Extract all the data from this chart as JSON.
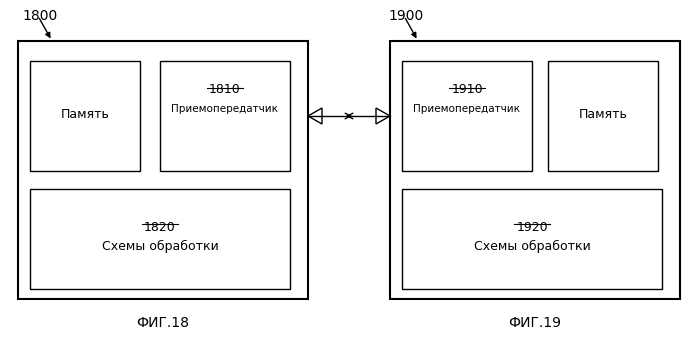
{
  "bg_color": "#ffffff",
  "border_color": "#000000",
  "fig_label_18": "ФИГ.18",
  "fig_label_19": "ФИГ.19",
  "label_1800": "1800",
  "label_1900": "1900",
  "label_memory_left": "Память",
  "label_memory_right": "Память",
  "label_1810": "1810",
  "label_1820": "1820",
  "label_1910": "1910",
  "label_1920": "1920",
  "label_transceiver_1810": "Приемопередатчик",
  "label_transceiver_1910": "Приемопередатчик",
  "label_processing_1820": "Схемы обработки",
  "label_processing_1920": "Схемы обработки",
  "text_color": "#000000",
  "lw": 1.5,
  "lw_thin": 1.0
}
